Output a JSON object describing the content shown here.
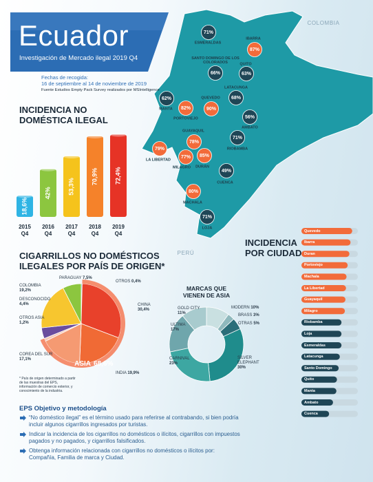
{
  "header": {
    "title": "Ecuador",
    "subtitle": "Investigación de Mercado ilegal 2019 Q4",
    "dates_label": "Fechas de recogida:",
    "dates": "16 de septiembre al 14 de noviembre de 2019",
    "source": "Fuente Estudios Empty Pack Survey realizados por MSIntelligence"
  },
  "chart_data": [
    {
      "type": "bar",
      "title": "INCIDENCIA NO DOMÉSTICA ILEGAL",
      "categories": [
        "2015 Q4",
        "2016 Q4",
        "2017 Q4",
        "2018 Q4",
        "2019 Q4"
      ],
      "values": [
        18.6,
        42,
        53.3,
        70.9,
        72.4
      ],
      "value_labels": [
        "18,6%",
        "42%",
        "53,3%",
        "70,9%",
        "72,4%"
      ],
      "colors": [
        "#2fb4e4",
        "#8cc63f",
        "#f5c31c",
        "#f5822a",
        "#e63326"
      ]
    },
    {
      "type": "pie",
      "title": "CIGARRILLOS NO DOMÉSTICOS ILEGALES POR PAÍS DE ORIGEN*",
      "categories": [
        "OTROS",
        "CHINA",
        "INDIA",
        "COREA DEL SUR",
        "OTROS ASIA",
        "DESCONOCIDO",
        "COLOMBIA",
        "PARAGUAY"
      ],
      "values": [
        0.4,
        30.4,
        19.9,
        17.1,
        1.2,
        4.4,
        19.2,
        7.5
      ],
      "value_labels": [
        "0,4%",
        "30,4%",
        "19,9%",
        "17,1%",
        "1,2%",
        "4,4%",
        "19,2%",
        "7,5%"
      ],
      "colors": [
        "#4fb3c8",
        "#e8412b",
        "#f06a35",
        "#f59a72",
        "#f4c9b8",
        "#6a4d9e",
        "#f7c62f",
        "#8cc63f"
      ],
      "group": {
        "name": "ASIA",
        "value": 68.6,
        "value_label": "68,6%"
      },
      "note": "* País de origen determinado a partir de las muestras del EPS, información de comercio exterior, y conocimiento de la industria."
    },
    {
      "type": "donut",
      "title": "MARCAS QUE VIENEN DE ASIA",
      "categories": [
        "MODERN",
        "BRASS",
        "OTRAS",
        "SILVER ELEPHANT",
        "CARNIVAL",
        "ULTIMA",
        "GOLD CITY"
      ],
      "values": [
        10,
        3,
        5,
        30,
        23,
        17,
        11
      ],
      "value_labels": [
        "10%",
        "3%",
        "5%",
        "30%",
        "23%",
        "17%",
        "11%"
      ],
      "colors": [
        "#c9e0e1",
        "#8fb9bd",
        "#2b6e79",
        "#1f8c8c",
        "#3da7a2",
        "#6fa6ac",
        "#a8cbce"
      ]
    },
    {
      "type": "hbar",
      "title": "INCIDENCIA POR CIUDAD",
      "categories": [
        "Quevedo",
        "Ibarra",
        "Duran",
        "Portoviejo",
        "Machala",
        "La Libertad",
        "Guayaquil",
        "Milagro",
        "Riobamba",
        "Loja",
        "Esmeraldas",
        "Latacunga",
        "Santo Domingo",
        "Quito",
        "Manta",
        "Ambato",
        "Cuenca"
      ],
      "values": [
        90,
        87,
        85,
        82,
        80,
        79,
        78,
        77,
        71,
        71,
        71,
        68,
        66,
        63,
        62,
        56,
        49
      ],
      "colors": [
        "#f26b3a",
        "#f26b3a",
        "#f26b3a",
        "#f26b3a",
        "#f26b3a",
        "#f26b3a",
        "#f26b3a",
        "#f26b3a",
        "#1f4656",
        "#1f4656",
        "#1f4656",
        "#1f4656",
        "#1f4656",
        "#1f4656",
        "#1f4656",
        "#1f4656",
        "#1f4656"
      ],
      "xlim": [
        0,
        100
      ]
    },
    {
      "type": "map",
      "annotations": [
        "COLOMBIA",
        "PERÚ"
      ],
      "categories": [
        "ESMERALDAS",
        "IBARRA",
        "SANTO DOMINGO DE LOS COLORADOS",
        "QUITO",
        "LATACUNGA",
        "QUEVEDO",
        "MANTA",
        "PORTOVIEJO",
        "AMBATO",
        "GUAYAQUIL",
        "RIOBAMBA",
        "LA LIBERTAD",
        "MILAGRO",
        "DURÁN",
        "CUENCA",
        "MACHALA",
        "LOJA"
      ],
      "values": [
        71,
        87,
        66,
        63,
        68,
        90,
        62,
        82,
        56,
        78,
        71,
        79,
        77,
        85,
        49,
        80,
        71
      ],
      "value_labels": [
        "71%",
        "87%",
        "66%",
        "63%",
        "68%",
        "90%",
        "62%",
        "82%",
        "56%",
        "78%",
        "71%",
        "79%",
        "77%",
        "85%",
        "49%",
        "80%",
        "71%"
      ],
      "colors": [
        "#1f4656",
        "#f26b3a",
        "#1f4656",
        "#1f4656",
        "#1f4656",
        "#f26b3a",
        "#1f4656",
        "#f26b3a",
        "#1f4656",
        "#f26b3a",
        "#1f4656",
        "#f26b3a",
        "#f26b3a",
        "#f26b3a",
        "#1f4656",
        "#f26b3a",
        "#1f4656"
      ]
    }
  ],
  "notes": {
    "title": "EPS Objetivo y metodología",
    "items": [
      "“No doméstico ilegal” es el término usado para referirse al contrabando, si bien podría incluir algunos cigarrillos ingresados por turistas.",
      "Indicar la incidencia de los cigarrillos no domésticos o ilícitos, cigarrillos con impuestos pagados y no pagados, y cigarrillos falsificados.",
      "Obtenga información relacionada con cigarrillos no domésticos o ilícitos por: Compañía, Familia de marca y Ciudad."
    ]
  }
}
